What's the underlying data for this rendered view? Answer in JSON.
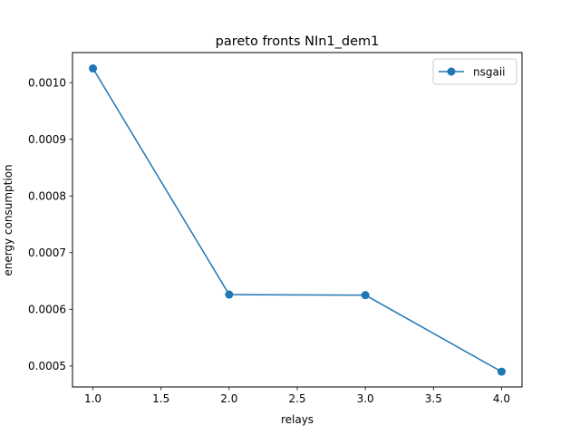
{
  "chart_data": {
    "type": "line",
    "title": "pareto fronts NIn1_dem1",
    "xlabel": "relays",
    "ylabel": "energy consumption",
    "xlim": [
      0.85,
      4.15
    ],
    "ylim": [
      0.000463,
      0.001053
    ],
    "xticks": [
      1.0,
      1.5,
      2.0,
      2.5,
      3.0,
      3.5,
      4.0
    ],
    "xtick_labels": [
      "1.0",
      "1.5",
      "2.0",
      "2.5",
      "3.0",
      "3.5",
      "4.0"
    ],
    "yticks": [
      0.0005,
      0.0006,
      0.0007,
      0.0008,
      0.0009,
      0.001
    ],
    "ytick_labels": [
      "0.0005",
      "0.0006",
      "0.0007",
      "0.0008",
      "0.0009",
      "0.0010"
    ],
    "grid": false,
    "legend_position": "upper right",
    "series": [
      {
        "name": "nsgaii",
        "color": "#1f77b4",
        "marker": "circle",
        "x": [
          1,
          2,
          3,
          4
        ],
        "y": [
          0.001025,
          0.000626,
          0.000625,
          0.00049
        ]
      }
    ]
  }
}
